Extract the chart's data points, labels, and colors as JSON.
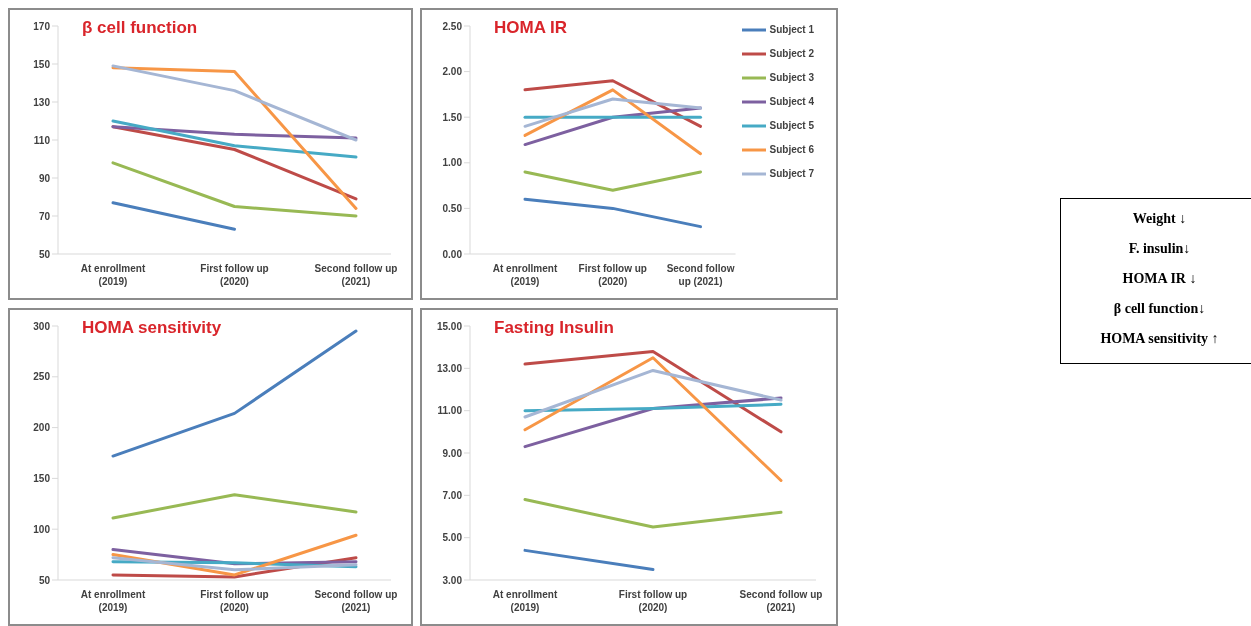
{
  "chart_data": [
    {
      "type": "line",
      "title": "β cell function",
      "categories": [
        "At enrollment\n(2019)",
        "First follow up\n(2020)",
        "Second follow up\n(2021)"
      ],
      "ylim": [
        50,
        170
      ],
      "yticks": [
        50,
        70,
        90,
        110,
        130,
        150,
        170
      ],
      "grid": false,
      "legend": false,
      "marker": "none",
      "line_style": "solid",
      "series": [
        {
          "color": "#4a7ebb",
          "values": [
            77,
            63,
            null
          ]
        },
        {
          "color": "#be4b48",
          "values": [
            117,
            105,
            79
          ]
        },
        {
          "color": "#98b954",
          "values": [
            98,
            75,
            70
          ]
        },
        {
          "color": "#7d60a0",
          "values": [
            117,
            113,
            111
          ]
        },
        {
          "color": "#46aac5",
          "values": [
            120,
            107,
            101
          ]
        },
        {
          "color": "#f79646",
          "values": [
            148,
            146,
            74
          ]
        },
        {
          "color": "#a5b6d4",
          "values": [
            149,
            136,
            110
          ]
        }
      ]
    },
    {
      "type": "line",
      "title": "HOMA IR",
      "categories": [
        "At enrollment\n(2019)",
        "First follow up\n(2020)",
        "Second follow\nup (2021)"
      ],
      "ylim": [
        0,
        2.5
      ],
      "yticks": [
        {
          "value": 0,
          "label": "0.00"
        },
        {
          "value": 0.5,
          "label": "0.50"
        },
        {
          "value": 1,
          "label": "1.00"
        },
        {
          "value": 1.5,
          "label": "1.50"
        },
        {
          "value": 2,
          "label": "2.00"
        },
        {
          "value": 2.5,
          "label": "2.50"
        }
      ],
      "grid": false,
      "legend": "top right",
      "marker": "none",
      "line_style": "solid",
      "series": [
        {
          "name": "Subject 1",
          "color": "#4a7ebb",
          "values": [
            0.6,
            0.5,
            0.3
          ]
        },
        {
          "name": "Subject 2",
          "color": "#be4b48",
          "values": [
            1.8,
            1.9,
            1.4
          ]
        },
        {
          "name": "Subject 3",
          "color": "#98b954",
          "values": [
            0.9,
            0.7,
            0.9
          ]
        },
        {
          "name": "Subject 4",
          "color": "#7d60a0",
          "values": [
            1.2,
            1.5,
            1.6
          ]
        },
        {
          "name": "Subject 5",
          "color": "#46aac5",
          "values": [
            1.5,
            1.5,
            1.5
          ]
        },
        {
          "name": "Subject 6",
          "color": "#f79646",
          "values": [
            1.3,
            1.8,
            1.1
          ]
        },
        {
          "name": "Subject 7",
          "color": "#a5b6d4",
          "values": [
            1.4,
            1.7,
            1.6
          ]
        }
      ]
    },
    {
      "type": "line",
      "title": "HOMA sensitivity",
      "categories": [
        "At enrollment\n(2019)",
        "First follow up\n(2020)",
        "Second follow up\n(2021)"
      ],
      "ylim": [
        50,
        300
      ],
      "yticks": [
        50,
        100,
        150,
        200,
        250,
        300
      ],
      "grid": false,
      "legend": false,
      "marker": "none",
      "line_style": "solid",
      "series": [
        {
          "color": "#4a7ebb",
          "values": [
            172,
            214,
            295
          ]
        },
        {
          "color": "#be4b48",
          "values": [
            55,
            53,
            72
          ]
        },
        {
          "color": "#98b954",
          "values": [
            111,
            134,
            117
          ]
        },
        {
          "color": "#7d60a0",
          "values": [
            80,
            66,
            68
          ]
        },
        {
          "color": "#46aac5",
          "values": [
            68,
            67,
            63
          ]
        },
        {
          "color": "#f79646",
          "values": [
            75,
            55,
            94
          ]
        },
        {
          "color": "#a5b6d4",
          "values": [
            72,
            60,
            65
          ]
        }
      ]
    },
    {
      "type": "line",
      "title": "Fasting Insulin",
      "categories": [
        "At enrollment\n(2019)",
        "First follow up\n(2020)",
        "Second follow up\n(2021)"
      ],
      "ylim": [
        3,
        15
      ],
      "yticks": [
        {
          "value": 3,
          "label": "3.00"
        },
        {
          "value": 5,
          "label": "5.00"
        },
        {
          "value": 7,
          "label": "7.00"
        },
        {
          "value": 9,
          "label": "9.00"
        },
        {
          "value": 11,
          "label": "11.00"
        },
        {
          "value": 13,
          "label": "13.00"
        },
        {
          "value": 15,
          "label": "15.00"
        }
      ],
      "grid": false,
      "legend": false,
      "marker": "none",
      "line_style": "solid",
      "series": [
        {
          "color": "#4a7ebb",
          "values": [
            4.4,
            3.5,
            null
          ]
        },
        {
          "color": "#be4b48",
          "values": [
            13.2,
            13.8,
            10.0
          ]
        },
        {
          "color": "#98b954",
          "values": [
            6.8,
            5.5,
            6.2
          ]
        },
        {
          "color": "#7d60a0",
          "values": [
            9.3,
            11.1,
            11.6
          ]
        },
        {
          "color": "#46aac5",
          "values": [
            11.0,
            11.1,
            11.3
          ]
        },
        {
          "color": "#f79646",
          "values": [
            10.1,
            13.5,
            7.7
          ]
        },
        {
          "color": "#a5b6d4",
          "values": [
            10.7,
            12.9,
            11.5
          ]
        }
      ]
    },
    {
      "type": "other",
      "annotations": [
        "Weight ↓",
        "F. insulin↓",
        "HOMA IR ↓",
        "β cell function↓",
        "HOMA sensitivity ↑"
      ]
    }
  ]
}
